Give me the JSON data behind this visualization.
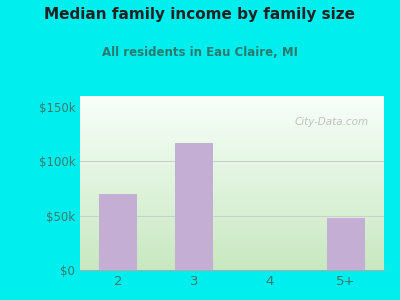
{
  "title": "Median family income by family size",
  "subtitle": "All residents in Eau Claire, MI",
  "categories": [
    "2",
    "3",
    "4",
    "5+"
  ],
  "values": [
    70000,
    117000,
    0,
    48000
  ],
  "bar_color": "#c4aed4",
  "bg_color": "#00EEEE",
  "grad_top_left": "#d4edcc",
  "grad_bottom_right": "#f8fffa",
  "title_color": "#222222",
  "subtitle_color": "#2a7a6e",
  "tick_color": "#3a7a6e",
  "grid_color": "#cccccc",
  "ylim": [
    0,
    160000
  ],
  "yticks": [
    0,
    50000,
    100000,
    150000
  ],
  "ytick_labels": [
    "$0",
    "$50k",
    "$100k",
    "$150k"
  ],
  "watermark": "City-Data.com"
}
